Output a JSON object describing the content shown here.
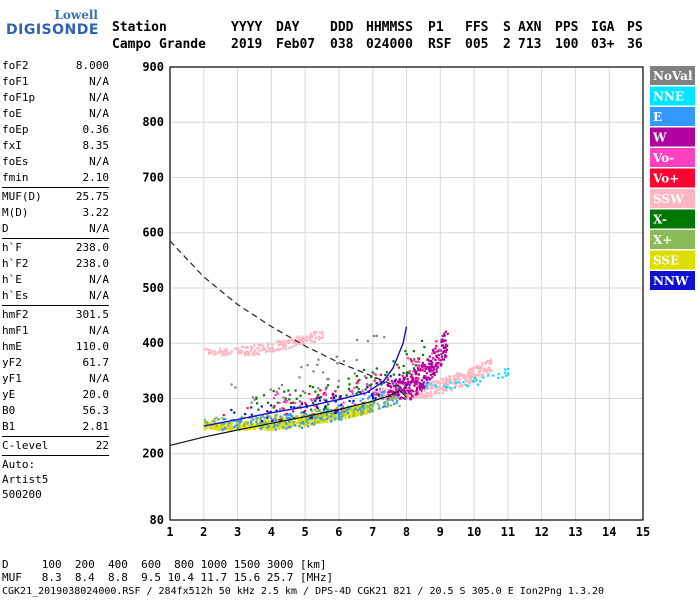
{
  "logo": {
    "line1": "Lowell",
    "line2": "DIGISONDE"
  },
  "header": {
    "row1": [
      "Station",
      "YYYY",
      "DAY",
      "DDD",
      "HHMMSS",
      "P1",
      "FFS",
      "S",
      "AXN",
      "PPS",
      "IGA",
      "PS"
    ],
    "row2": [
      "Campo Grande",
      "2019",
      "Feb07",
      "038",
      "024000",
      "RSF",
      "005",
      "2",
      "713",
      "100",
      "03+",
      "36"
    ]
  },
  "params_group1": [
    {
      "k": "foF2",
      "v": "8.000"
    },
    {
      "k": "foF1",
      "v": "N/A"
    },
    {
      "k": "foF1p",
      "v": "N/A"
    },
    {
      "k": "foE",
      "v": "N/A"
    },
    {
      "k": "foEp",
      "v": "0.36"
    },
    {
      "k": "fxI",
      "v": "8.35"
    },
    {
      "k": "foEs",
      "v": "N/A"
    },
    {
      "k": "fmin",
      "v": "2.10"
    }
  ],
  "params_group2": [
    {
      "k": "MUF(D)",
      "v": "25.75"
    },
    {
      "k": "M(D)",
      "v": "3.22"
    },
    {
      "k": "D",
      "v": "N/A"
    }
  ],
  "params_group3": [
    {
      "k": "h`F",
      "v": "238.0"
    },
    {
      "k": "h`F2",
      "v": "238.0"
    },
    {
      "k": "h`E",
      "v": "N/A"
    },
    {
      "k": "h`Es",
      "v": "N/A"
    }
  ],
  "params_group4": [
    {
      "k": "hmF2",
      "v": "301.5"
    },
    {
      "k": "hmF1",
      "v": "N/A"
    },
    {
      "k": "hmE",
      "v": "110.0"
    },
    {
      "k": "yF2",
      "v": "61.7"
    },
    {
      "k": "yF1",
      "v": "N/A"
    },
    {
      "k": "yE",
      "v": "20.0"
    },
    {
      "k": "B0",
      "v": "56.3"
    },
    {
      "k": "B1",
      "v": "2.81"
    }
  ],
  "params_group5": [
    {
      "k": "C-level",
      "v": "22"
    }
  ],
  "auto_text": [
    "Auto:",
    "Artist5",
    "500200"
  ],
  "bottom": {
    "d_row": "D     100  200  400  600  800 1000 1500 3000 [km]",
    "muf_row": "MUF   8.3  8.4  8.8  9.5 10.4 11.7 15.6 25.7 [MHz]",
    "footer": "CGK21_2019038024000.RSF / 284fx512h 50 kHz 2.5 km / DPS-4D CGK21 821 / 20.5 S 305.0 E Ion2Png 1.3.20"
  },
  "legend": [
    {
      "label": "NoVal",
      "color": "#808080",
      "text": "#ffffff"
    },
    {
      "label": "NNE",
      "color": "#00e5ff",
      "text": "#ffffff"
    },
    {
      "label": "E",
      "color": "#3399ff",
      "text": "#ffffff"
    },
    {
      "label": "W",
      "color": "#b000a0",
      "text": "#ffffff"
    },
    {
      "label": "Vo-",
      "color": "#ff40c0",
      "text": "#ffffff"
    },
    {
      "label": "Vo+",
      "color": "#ff0030",
      "text": "#ffffff"
    },
    {
      "label": "SSW",
      "color": "#ffb6c1",
      "text": "#ffffff"
    },
    {
      "label": "X-",
      "color": "#007700",
      "text": "#ffffff"
    },
    {
      "label": "X+",
      "color": "#88bb55",
      "text": "#ffffff"
    },
    {
      "label": "SSE",
      "color": "#dddd00",
      "text": "#ffffff"
    },
    {
      "label": "NNW",
      "color": "#1010d0",
      "text": "#ffffff"
    }
  ],
  "chart_data": {
    "type": "scatter",
    "xlim": [
      1,
      15
    ],
    "ylim": [
      80,
      900
    ],
    "x_ticks": [
      1,
      2,
      3,
      4,
      5,
      6,
      7,
      8,
      9,
      10,
      11,
      12,
      13,
      14,
      15
    ],
    "y_ticks": [
      80,
      200,
      300,
      400,
      500,
      600,
      700,
      800,
      900
    ],
    "grid": true,
    "profile_solid": [
      [
        1.0,
        215
      ],
      [
        2,
        230
      ],
      [
        3,
        243
      ],
      [
        4,
        255
      ],
      [
        5,
        267
      ],
      [
        6,
        280
      ],
      [
        7,
        295
      ],
      [
        7.5,
        305
      ],
      [
        7.8,
        315
      ],
      [
        8.0,
        302
      ]
    ],
    "profile_dashed": [
      [
        1.0,
        585
      ],
      [
        2,
        520
      ],
      [
        3,
        470
      ],
      [
        4,
        430
      ],
      [
        5,
        395
      ],
      [
        6,
        365
      ],
      [
        7,
        340
      ],
      [
        7.6,
        325
      ],
      [
        8.0,
        320
      ]
    ],
    "trace_fit": [
      [
        2,
        250
      ],
      [
        3,
        262
      ],
      [
        4,
        274
      ],
      [
        5,
        285
      ],
      [
        6,
        298
      ],
      [
        6.8,
        310
      ],
      [
        7.3,
        330
      ],
      [
        7.6,
        355
      ],
      [
        7.9,
        400
      ],
      [
        8.0,
        430
      ]
    ],
    "clusters": [
      {
        "color": "#dddd00",
        "x": [
          2.0,
          7.0
        ],
        "y": [
          245,
          300
        ],
        "n": 700
      },
      {
        "color": "#ffb6c1",
        "x": [
          7.0,
          10.5
        ],
        "y": [
          300,
          380
        ],
        "n": 450
      },
      {
        "color": "#ffb6c1",
        "x": [
          2.0,
          5.5
        ],
        "y": [
          380,
          430
        ],
        "n": 220
      },
      {
        "color": "#b000a0",
        "x": [
          7.4,
          9.2
        ],
        "y": [
          300,
          440
        ],
        "n": 300
      },
      {
        "color": "#3399ff",
        "x": [
          2.5,
          7.8
        ],
        "y": [
          245,
          330
        ],
        "n": 200
      },
      {
        "color": "#007700",
        "x": [
          3.5,
          8.5
        ],
        "y": [
          280,
          420
        ],
        "n": 90
      },
      {
        "color": "#88bb55",
        "x": [
          2.0,
          8.0
        ],
        "y": [
          250,
          320
        ],
        "n": 150
      },
      {
        "color": "#ff40c0",
        "x": [
          4.0,
          9.0
        ],
        "y": [
          280,
          420
        ],
        "n": 80
      },
      {
        "color": "#1010d0",
        "x": [
          2.5,
          8.0
        ],
        "y": [
          260,
          360
        ],
        "n": 60
      },
      {
        "color": "#00e5ff",
        "x": [
          8.5,
          11.0
        ],
        "y": [
          320,
          360
        ],
        "n": 40
      },
      {
        "color": "#ff0030",
        "x": [
          2.5,
          8.5
        ],
        "y": [
          260,
          400
        ],
        "n": 40
      },
      {
        "color": "#808080",
        "x": [
          2.5,
          7.5
        ],
        "y": [
          280,
          480
        ],
        "n": 40
      }
    ]
  }
}
